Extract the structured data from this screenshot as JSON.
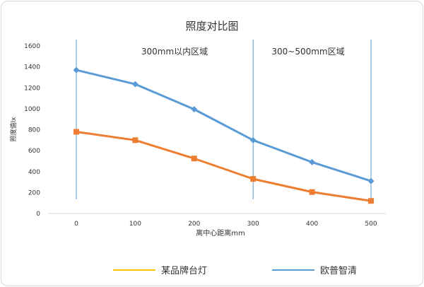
{
  "chart_data": {
    "type": "line",
    "title": "照度对比图",
    "xlabel": "离中心距离mm",
    "ylabel": "照度值lx",
    "categories": [
      "0",
      "100",
      "200",
      "300",
      "400",
      "500"
    ],
    "ylim": [
      0,
      1600
    ],
    "yticks": [
      "0",
      "200",
      "400",
      "600",
      "800",
      "1000",
      "1200",
      "1400",
      "1600"
    ],
    "grid": false,
    "legend_position": "bottom",
    "series": [
      {
        "name": "某品牌台灯",
        "color": "#ED7D31",
        "legend_color": "#FFC000",
        "marker": "square",
        "values": [
          780,
          700,
          525,
          330,
          205,
          120
        ]
      },
      {
        "name": "欧普智清",
        "color": "#5B9BD5",
        "legend_color": "#5B9BD5",
        "marker": "diamond",
        "values": [
          1370,
          1235,
          995,
          700,
          490,
          310
        ]
      }
    ],
    "annotations": {
      "region1": "300mm以内区域",
      "region2": "300~500mm区域"
    },
    "vertical_lines_at": [
      0,
      300,
      500
    ]
  }
}
